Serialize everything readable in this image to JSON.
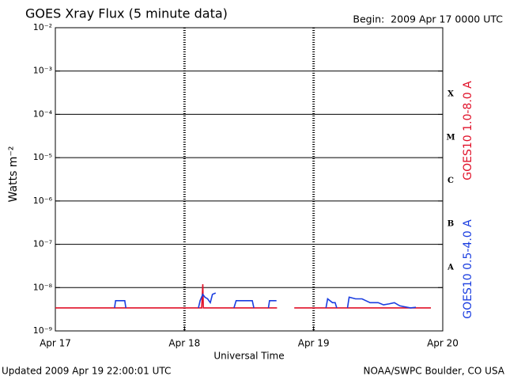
{
  "chart_data": {
    "type": "line",
    "title": "GOES Xray Flux (5 minute data)",
    "begin_label": "Begin:  2009 Apr 17 0000 UTC",
    "x_label": "Universal Time",
    "y_label": "Watts m⁻²",
    "footer_left": "Updated 2009 Apr 19 22:00:01 UTC",
    "footer_right": "NOAA/SWPC Boulder, CO USA",
    "log_y": true,
    "grid": true,
    "xlim": [
      0,
      72
    ],
    "xticks": [
      {
        "value": 0,
        "label": "Apr 17"
      },
      {
        "value": 24,
        "label": "Apr 18"
      },
      {
        "value": 48,
        "label": "Apr 19"
      },
      {
        "value": 72,
        "label": "Apr 20"
      }
    ],
    "ylim": [
      1e-09,
      0.01
    ],
    "yticks": [
      {
        "value": 1e-09,
        "label": "10⁻⁹"
      },
      {
        "value": 1e-08,
        "label": "10⁻⁸"
      },
      {
        "value": 1e-07,
        "label": "10⁻⁷"
      },
      {
        "value": 1e-06,
        "label": "10⁻⁶"
      },
      {
        "value": 1e-05,
        "label": "10⁻⁵"
      },
      {
        "value": 0.0001,
        "label": "10⁻⁴"
      },
      {
        "value": 0.001,
        "label": "10⁻³"
      },
      {
        "value": 0.01,
        "label": "10⁻²"
      }
    ],
    "class_labels": [
      "X",
      "M",
      "C",
      "B",
      "A"
    ],
    "series": [
      {
        "name": "GOES10 1.0-8.0 A",
        "color": "#e01028",
        "x": [
          0,
          27.2,
          27.4,
          27.5,
          27.8,
          41.2,
          42.8,
          44.4,
          69.8
        ],
        "values": [
          3.4e-09,
          3.4e-09,
          1.2e-08,
          3.4e-09,
          3.4e-09,
          3.4e-09,
          null,
          3.4e-09,
          3.4e-09
        ]
      },
      {
        "name": "GOES10 0.5-4.0 A",
        "color": "#1a3de0",
        "x": [
          11.0,
          11.2,
          12.9,
          13.1,
          20,
          26.6,
          26.9,
          27.4,
          27.8,
          28.3,
          28.8,
          29.2,
          29.8,
          31,
          33.2,
          33.6,
          36.6,
          36.9,
          38,
          39.6,
          39.8,
          41.1,
          45,
          50.3,
          50.6,
          51.5,
          52.0,
          52.3,
          53,
          54.3,
          54.6,
          55.8,
          57,
          58.5,
          60,
          61,
          62,
          63,
          64,
          65,
          66,
          67
        ],
        "values": [
          3.4e-09,
          5e-09,
          5e-09,
          3.4e-09,
          null,
          3.4e-09,
          5e-09,
          7e-09,
          6e-09,
          5.5e-09,
          4.5e-09,
          7e-09,
          7.5e-09,
          null,
          3.4e-09,
          5e-09,
          5e-09,
          3.4e-09,
          null,
          3.4e-09,
          5e-09,
          5e-09,
          null,
          3.4e-09,
          5.5e-09,
          4.5e-09,
          4.5e-09,
          3.4e-09,
          null,
          3.4e-09,
          6e-09,
          5.5e-09,
          5.5e-09,
          4.5e-09,
          4.5e-09,
          4e-09,
          4.2e-09,
          4.5e-09,
          3.8e-09,
          3.6e-09,
          3.4e-09,
          3.5e-09
        ]
      }
    ]
  }
}
